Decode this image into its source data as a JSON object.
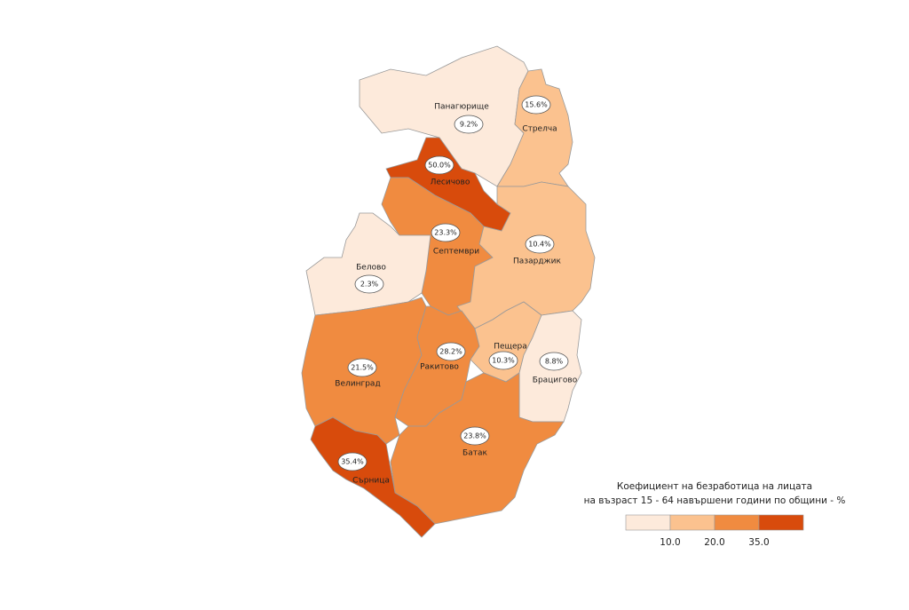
{
  "chart_data": {
    "type": "choropleth",
    "legend_title": [
      "Коефициент на безработица на лицата",
      "на възраст 15 - 64 навършени години по общини - %"
    ],
    "categories": [
      "Панагюрище",
      "Стрелча",
      "Лесичово",
      "Септември",
      "Пазарджик",
      "Белово",
      "Велинград",
      "Ракитово",
      "Пещера",
      "Брацигово",
      "Батак",
      "Сърница"
    ],
    "values": [
      9.2,
      15.6,
      50.0,
      23.3,
      10.4,
      2.3,
      21.5,
      28.2,
      10.3,
      8.8,
      23.8,
      35.4
    ],
    "value_labels": [
      "9.2%",
      "15.6%",
      "50.0%",
      "23.3%",
      "10.4%",
      "2.3%",
      "21.5%",
      "28.2%",
      "10.3%",
      "8.8%",
      "23.8%",
      "35.4%"
    ],
    "thresholds": [
      {
        "value": 10,
        "label": "10.0"
      },
      {
        "value": 20,
        "label": "20.0"
      },
      {
        "value": 35,
        "label": "35.0"
      }
    ],
    "colors": [
      "#fdeadb",
      "#fbc28f",
      "#f08b40",
      "#d84b0c"
    ]
  }
}
